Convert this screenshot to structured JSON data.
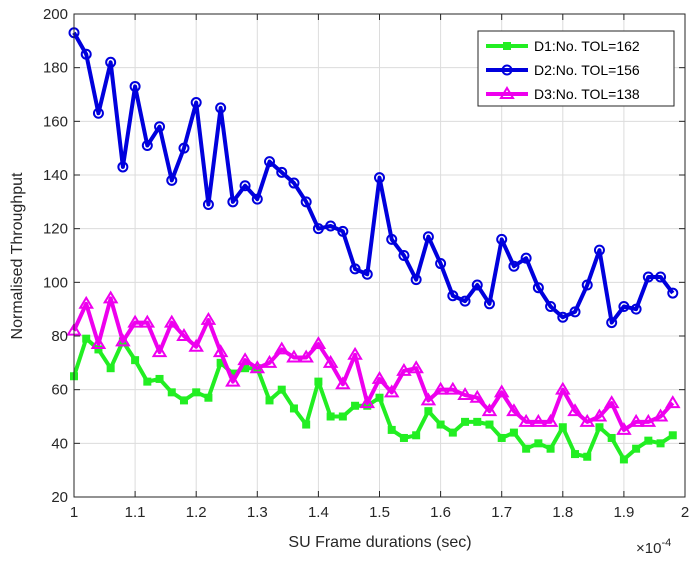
{
  "chart_data": {
    "type": "line",
    "xlabel": "SU Frame durations (sec)",
    "ylabel": "Normalised Throughput",
    "x_multiplier_label": "×10",
    "x_multiplier_exponent": "-4",
    "xlim": [
      1.0,
      2.0
    ],
    "ylim": [
      20,
      200
    ],
    "xticks": [
      1,
      1.1,
      1.2,
      1.3,
      1.4,
      1.5,
      1.6,
      1.7,
      1.8,
      1.9,
      2
    ],
    "xtick_labels": [
      "1",
      "1.1",
      "1.2",
      "1.3",
      "1.4",
      "1.5",
      "1.6",
      "1.7",
      "1.8",
      "1.9",
      "2"
    ],
    "yticks": [
      20,
      40,
      60,
      80,
      100,
      120,
      140,
      160,
      180,
      200
    ],
    "ytick_labels": [
      "20",
      "40",
      "60",
      "80",
      "100",
      "120",
      "140",
      "160",
      "180",
      "200"
    ],
    "grid": true,
    "legend_position": "top-right",
    "x": [
      1.0,
      1.02,
      1.04,
      1.06,
      1.08,
      1.1,
      1.12,
      1.14,
      1.16,
      1.18,
      1.2,
      1.22,
      1.24,
      1.26,
      1.28,
      1.3,
      1.32,
      1.34,
      1.36,
      1.38,
      1.4,
      1.42,
      1.44,
      1.46,
      1.48,
      1.5,
      1.52,
      1.54,
      1.56,
      1.58,
      1.6,
      1.62,
      1.64,
      1.66,
      1.68,
      1.7,
      1.72,
      1.74,
      1.76,
      1.78,
      1.8,
      1.82,
      1.84,
      1.86,
      1.88,
      1.9,
      1.92,
      1.94,
      1.96,
      1.98
    ],
    "series": [
      {
        "name": "D1:No. TOL=162",
        "color": "#22ee22",
        "marker": "square",
        "values": [
          65,
          79,
          75,
          68,
          78,
          71,
          63,
          64,
          59,
          56,
          59,
          57,
          70,
          66,
          68,
          68,
          56,
          60,
          53,
          47,
          63,
          50,
          50,
          54,
          54,
          57,
          45,
          42,
          43,
          52,
          47,
          44,
          48,
          48,
          47,
          42,
          44,
          38,
          40,
          38,
          46,
          36,
          35,
          46,
          42,
          34,
          38,
          41,
          40,
          43
        ]
      },
      {
        "name": "D2:No. TOL=156",
        "color": "#0000dd",
        "marker": "circle",
        "values": [
          193,
          185,
          163,
          182,
          143,
          173,
          151,
          158,
          138,
          150,
          167,
          129,
          165,
          130,
          136,
          131,
          145,
          141,
          137,
          130,
          120,
          121,
          119,
          105,
          103,
          139,
          116,
          110,
          101,
          117,
          107,
          95,
          93,
          99,
          92,
          116,
          106,
          109,
          98,
          91,
          87,
          89,
          99,
          112,
          85,
          91,
          90,
          102,
          102,
          96
        ]
      },
      {
        "name": "D3:No. TOL=138",
        "color": "#ee00ee",
        "marker": "triangle",
        "values": [
          82,
          92,
          77,
          94,
          78,
          85,
          85,
          74,
          85,
          80,
          76,
          86,
          74,
          63,
          71,
          68,
          70,
          75,
          72,
          72,
          77,
          70,
          62,
          73,
          55,
          64,
          59,
          67,
          68,
          56,
          60,
          60,
          58,
          57,
          52,
          59,
          52,
          48,
          48,
          48,
          60,
          52,
          48,
          50,
          55,
          45,
          48,
          48,
          50,
          55
        ]
      }
    ]
  }
}
